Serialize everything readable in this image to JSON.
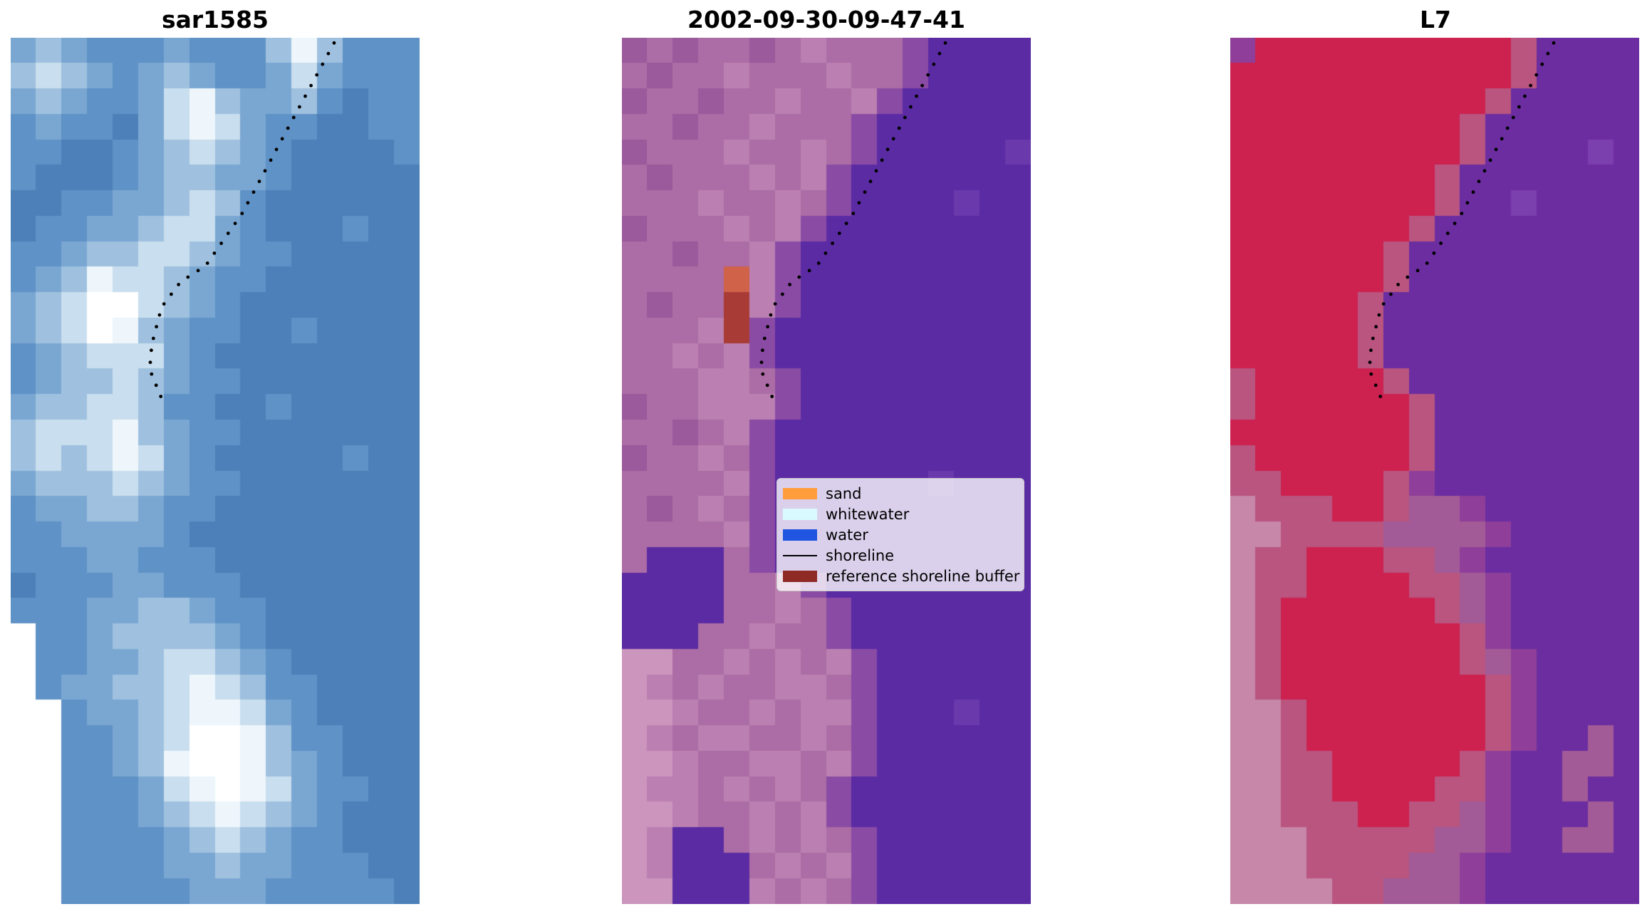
{
  "figure": {
    "background": "#ffffff",
    "shoreline": {
      "color": "#000000",
      "dot_radius": 2.4,
      "dot_spacing": 17,
      "anchors": [
        [
          0.791,
          0.006
        ],
        [
          0.675,
          0.107
        ],
        [
          0.567,
          0.202
        ],
        [
          0.477,
          0.263
        ],
        [
          0.415,
          0.282
        ],
        [
          0.369,
          0.311
        ],
        [
          0.345,
          0.354
        ],
        [
          0.34,
          0.383
        ],
        [
          0.374,
          0.422
        ]
      ]
    },
    "panels": [
      {
        "id": "sar1585",
        "title": "sar1585",
        "palette": {
          "a": "#4d80b9",
          "b": "#5f92c6",
          "c": "#7aa7d2",
          "d": "#9fc1df",
          "e": "#c9deee",
          "f": "#eef6fb",
          "g": "#ffffff",
          "x": "#ffffff"
        },
        "grid": [
          "cdcbbbcbbbdfdbbb",
          "dedcbcdcbbcecbbb",
          "cdcbbcefdccdbabb",
          "bcbbacefecbbaabb",
          "bbaabcdedcbaaaab",
          "baaabcddccbaaaaa",
          "aabbccdedbaaaaaa",
          "abbccdeecbaaabaa",
          "bbcddeedcbbaaaaa",
          "bcdfeedcbbaaaaaa",
          "cdeggedcbaaaaaaa",
          "cdegfdcbbaabaaaa",
          "bcdeeecbaaaaaaaa",
          "bcddedcbbaaaaaaa",
          "cddeedbbaabaaaaa",
          "deeefdcbbaaaaaaa",
          "dedefecbaaaaabaa",
          "cdddedcbbaaaaaaa",
          "bccddcbbaaaaaaaa",
          "bbccccbaaaaaaaaa",
          "bbbccbbbaaaaaaaa",
          "abbbccbbbaaaaaaa",
          "bbbccddcbbaaaaaa",
          "xbbcddddcbaaaaaa",
          "xbbccdeedcbaaaaa",
          "xbccddefedbbaaaa",
          "xxbccdeffecbaaaa",
          "xxbbcdeggfdbbaaa",
          "xxbbcdfggfdcbaaa",
          "xxbbbcefgfecbbaa",
          "xxbbbcdefedcbaaa",
          "xxbbbbcdedcbbaaa",
          "xxbbbbccdccbbbaa",
          "xxbbbbbcccbbbbba"
        ]
      },
      {
        "id": "classified",
        "title": "2002-09-30-09-47-41",
        "palette": {
          "p": "#5b2ba4",
          "q": "#6a39ac",
          "m": "#9a5a9b",
          "n": "#ac6ca5",
          "o": "#bb80b1",
          "l": "#cb95be",
          "r": "#a83b35",
          "s": "#cf6248",
          "t": "#8a4ba4"
        },
        "grid": [
          "mnmnnmnonnntpppp",
          "nmnnonnnonntpppp",
          "mnnmnnonnotppppp",
          "nnmnnonnntpppppp",
          "mnnnonnontpppppq",
          "nmnnnonotppppppp",
          "nnnonnontppppqpp",
          "mnnnonotpppppppp",
          "nnmnnotppppppppp",
          "nnnnsotppppppppp",
          "nmnnrotppppppppp",
          "nnnortpppppppppp",
          "nnonotpppppppppp",
          "nnnoontppppppppp",
          "mnnoootppppppppp",
          "nnmnotpppppppppp",
          "mnnontpppppppppp",
          "nnnnotppppppqppp",
          "nmnontpppppppppp",
          "nnnnotpppppppppp",
          "npppntpppppppppp",
          "ppppnnotpppppppp",
          "ppppnnontppppppp",
          "pppnnonntppppppp",
          "llnnononotpppppp",
          "lononnoontpppppp",
          "llonnonootpppqpp",
          "lonoonnontpppppp",
          "llonnoonotpppppp",
          "loononontppppppp",
          "llonnonotppppppp",
          "loppnonontpppppp",
          "lopppnonotpppppp",
          "llppponontpppppp"
        ],
        "legend": {
          "entries": [
            {
              "label": "sand",
              "type": "patch",
              "color": "#ff9d3c"
            },
            {
              "label": "whitewater",
              "type": "patch",
              "color": "#d9fbff"
            },
            {
              "label": "water",
              "type": "patch",
              "color": "#1f55e0"
            },
            {
              "label": "shoreline",
              "type": "line",
              "color": "#000000"
            },
            {
              "label": "reference shoreline buffer",
              "type": "patch",
              "color": "#8f2a25"
            }
          ]
        }
      },
      {
        "id": "L7",
        "title": "L7",
        "palette": {
          "p": "#6b2da0",
          "q": "#7c3fae",
          "r": "#cd2150",
          "u": "#b9557f",
          "v": "#a25b97",
          "w": "#c687a9",
          "t": "#8f3f99"
        },
        "grid": [
          "trrrrrrrrrrupppp",
          "rrrrrrrrrrrupppp",
          "rrrrrrrrrruppppp",
          "rrrrrrrrrupppppp",
          "rrrrrrrrruppppqp",
          "rrrrrrrruppppppp",
          "rrrrrrrruppqpppp",
          "rrrrrrrupppppppp",
          "rrrrrruppppppppp",
          "rrrrrruppppppppp",
          "rrrrrupppppppppp",
          "rrrrrupppppppppp",
          "rrrrrupppppppppp",
          "urrrrruppppppppp",
          "urrrrrrupppppppp",
          "rrrrrrrupppppppp",
          "urrrrrrupppppppp",
          "uurrrrutpppppppp",
          "wuuurruvvtpppppp",
          "wwuuuuvvvvtppppp",
          "wuurrruuvtpppppp",
          "wuurrrruuvtppppp",
          "wurrrrrruvtppppp",
          "wurrrrrrrutppppp",
          "wurrrrrrruvtpppp",
          "wurrrrrrrrutpppp",
          "wwurrrrrrrutpppp",
          "wwurrrrrrrutppvp",
          "wwuurrrrrutppvvp",
          "wwuurrrruutppvpp",
          "wwuuurruuvtpppvp",
          "wwwuuuuuvvtppvvp",
          "wwwuuuuvvtpppppp",
          "wwwwuuvvvtpppppp"
        ]
      }
    ]
  }
}
